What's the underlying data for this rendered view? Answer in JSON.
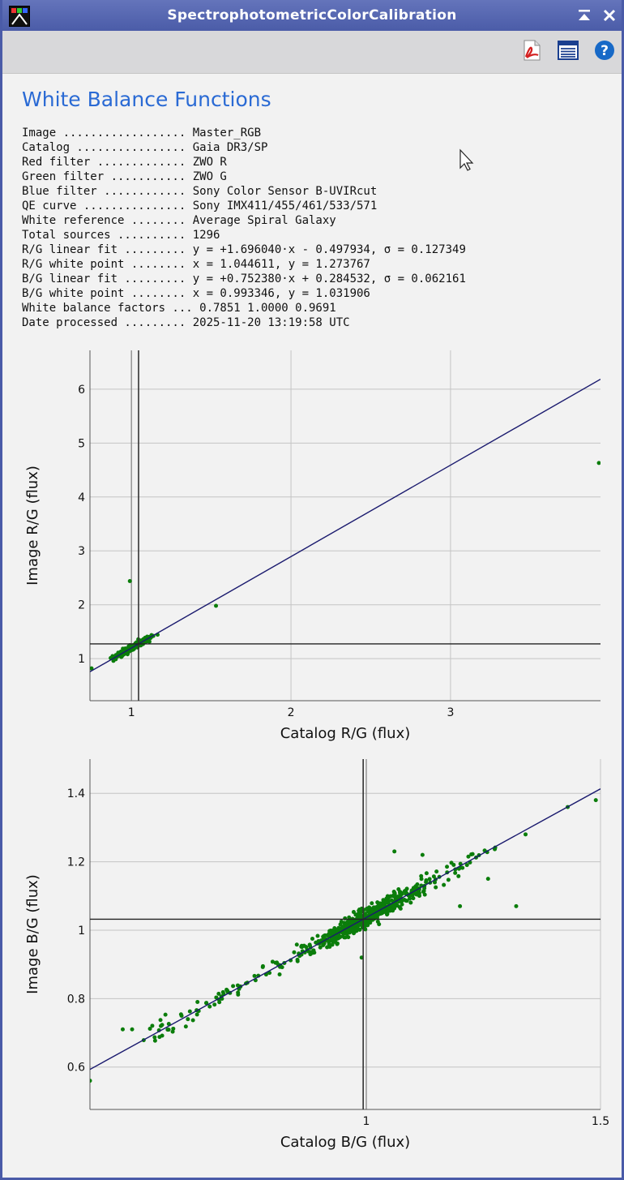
{
  "window": {
    "title": "SpectrophotometricColorCalibration"
  },
  "toolbar": {
    "icons": [
      "pdf-export-icon",
      "table-view-icon",
      "help-icon"
    ]
  },
  "report": {
    "heading": "White Balance Functions",
    "lines": [
      "Image .................. Master_RGB",
      "Catalog ................ Gaia DR3/SP",
      "Red filter ............. ZWO R",
      "Green filter ........... ZWO G",
      "Blue filter ............ Sony Color Sensor B-UVIRcut",
      "QE curve ............... Sony IMX411/455/461/533/571",
      "White reference ........ Average Spiral Galaxy",
      "Total sources .......... 1296",
      "R/G linear fit ......... y = +1.696040·x - 0.497934, σ = 0.127349",
      "R/G white point ........ x = 1.044611, y = 1.273767",
      "B/G linear fit ......... y = +0.752380·x + 0.284532, σ = 0.062161",
      "B/G white point ........ x = 0.993346, y = 1.031906",
      "White balance factors ... 0.7851 1.0000 0.9691",
      "Date processed ......... 2025-11-20 13:19:58 UTC"
    ]
  },
  "colors": {
    "points": "#0b7d0b",
    "fit_line": "#1a1a6e",
    "heading": "#2a6ad4",
    "titlebar": "#5566b0"
  },
  "chart_data": [
    {
      "type": "scatter",
      "xlabel": "Catalog R/G (flux)",
      "ylabel": "Image R/G (flux)",
      "xlim": [
        0.74,
        3.94
      ],
      "ylim": [
        0.22,
        6.72
      ],
      "xticks": [
        1,
        2,
        3
      ],
      "yticks": [
        1,
        2,
        3,
        4,
        5,
        6
      ],
      "grid": true,
      "fit": {
        "slope": 1.69604,
        "intercept": -0.497934,
        "sigma": 0.127349
      },
      "white_point": {
        "x": 1.044611,
        "y": 1.273767
      },
      "reference_x": 1.0,
      "cluster": {
        "x_range": [
          0.75,
          1.5
        ],
        "count": 260
      },
      "outliers": [
        [
          0.99,
          2.44
        ],
        [
          1.53,
          1.98
        ],
        [
          3.93,
          4.63
        ],
        [
          0.75,
          0.82
        ]
      ]
    },
    {
      "type": "scatter",
      "xlabel": "Catalog B/G (flux)",
      "ylabel": "Image B/G (flux)",
      "xlim": [
        0.41,
        1.5
      ],
      "ylim": [
        0.476,
        1.5
      ],
      "xticks": [
        1,
        1.5
      ],
      "yticks": [
        0.6,
        0.8,
        1,
        1.2,
        1.4
      ],
      "grid": true,
      "fit": {
        "slope": 0.75238,
        "intercept": 0.284532,
        "sigma": 0.062161
      },
      "white_point": {
        "x": 0.993346,
        "y": 1.031906
      },
      "reference_x": 1.0,
      "cluster": {
        "x_range": [
          0.52,
          1.28
        ],
        "count": 600
      },
      "outliers": [
        [
          1.43,
          1.36
        ],
        [
          1.49,
          1.38
        ],
        [
          1.34,
          1.28
        ],
        [
          1.32,
          1.07
        ],
        [
          1.26,
          1.15
        ],
        [
          0.41,
          0.56
        ],
        [
          0.48,
          0.71
        ],
        [
          0.5,
          0.71
        ],
        [
          1.12,
          1.22
        ],
        [
          0.99,
          0.92
        ],
        [
          1.2,
          1.07
        ],
        [
          1.06,
          1.23
        ]
      ]
    }
  ]
}
